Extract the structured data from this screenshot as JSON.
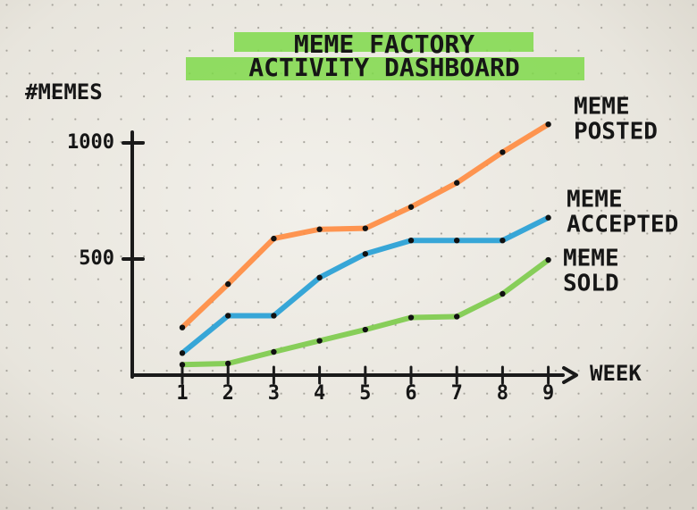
{
  "chart_data": {
    "type": "line",
    "title": "MEME FACTORY",
    "subtitle": "ACTIVITY DASHBOARD",
    "xlabel": "WEEK",
    "ylabel": "#MEMES",
    "x": [
      1,
      2,
      3,
      4,
      5,
      6,
      7,
      8,
      9
    ],
    "ylim": [
      0,
      1000
    ],
    "yticks": [
      500,
      1000
    ],
    "ytick_labels": [
      "500",
      "1000"
    ],
    "grid": false,
    "legend": "right-of-lines",
    "series": [
      {
        "name": "MEME POSTED",
        "label_lines": [
          "MEME",
          "POSTED"
        ],
        "color": "#ff8c42",
        "values": [
          205,
          392,
          588,
          628,
          632,
          724,
          828,
          960,
          1080
        ]
      },
      {
        "name": "MEME ACCEPTED",
        "label_lines": [
          "MEME",
          "ACCEPTED"
        ],
        "color": "#27a0d6",
        "values": [
          95,
          256,
          256,
          420,
          522,
          580,
          580,
          580,
          678
        ]
      },
      {
        "name": "MEME SOLD",
        "label_lines": [
          "MEME",
          "SOLD"
        ],
        "color": "#7ecb4d",
        "values": [
          45,
          50,
          100,
          148,
          196,
          248,
          252,
          350,
          496
        ]
      }
    ],
    "highlight_color": "#7fd94a",
    "axis_color": "#1a1a1a"
  }
}
